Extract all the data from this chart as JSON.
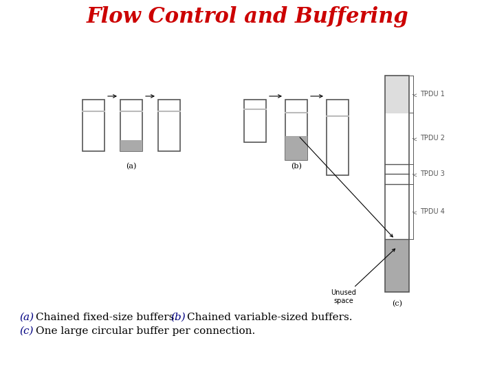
{
  "title": "Flow Control and Buffering",
  "title_color": "#cc0000",
  "title_fontsize": 22,
  "bg_color": "#ffffff",
  "caption_line1_parts": [
    {
      "text": "(a)",
      "color": "#000080",
      "style": "italic"
    },
    {
      "text": "  Chained fixed-size buffers.  ",
      "color": "#000000",
      "style": "normal"
    },
    {
      "text": "(b)",
      "color": "#000080",
      "style": "italic"
    },
    {
      "text": "  Chained variable-sized buffers.",
      "color": "#000000",
      "style": "normal"
    }
  ],
  "caption_line2_parts": [
    {
      "text": "(c)",
      "color": "#000080",
      "style": "italic"
    },
    {
      "text": "  One large circular buffer per connection.",
      "color": "#000000",
      "style": "normal"
    }
  ],
  "caption_fontsize": 11,
  "gray_fill": "#aaaaaa",
  "light_gray": "#bbbbbb",
  "very_light_gray": "#dddddd",
  "box_edge": "#555555",
  "section_a_label": "(a)",
  "section_b_label": "(b)",
  "section_c_label": "(c)",
  "tpdu_labels": [
    "TPDU 1",
    "TPDU 2",
    "TPDU 3",
    "TPDU 4"
  ],
  "unused_space_label": "Unused\nspace"
}
